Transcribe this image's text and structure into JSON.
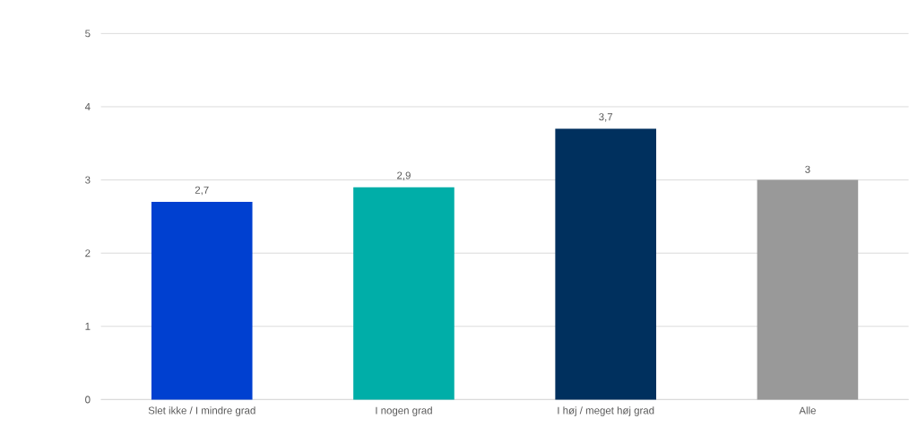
{
  "chart_data": {
    "type": "bar",
    "categories": [
      "Slet ikke / I mindre grad",
      "I nogen grad",
      "I høj / meget høj grad",
      "Alle"
    ],
    "values": [
      2.7,
      2.9,
      3.7,
      3
    ],
    "colors": [
      "#0040d0",
      "#00aea8",
      "#00305e",
      "#999999"
    ],
    "value_labels": [
      "2,7",
      "2,9",
      "3,7",
      "3"
    ],
    "ylim": [
      0,
      5
    ],
    "yticks": [
      0,
      1,
      2,
      3,
      4,
      5
    ],
    "grid": "y"
  }
}
